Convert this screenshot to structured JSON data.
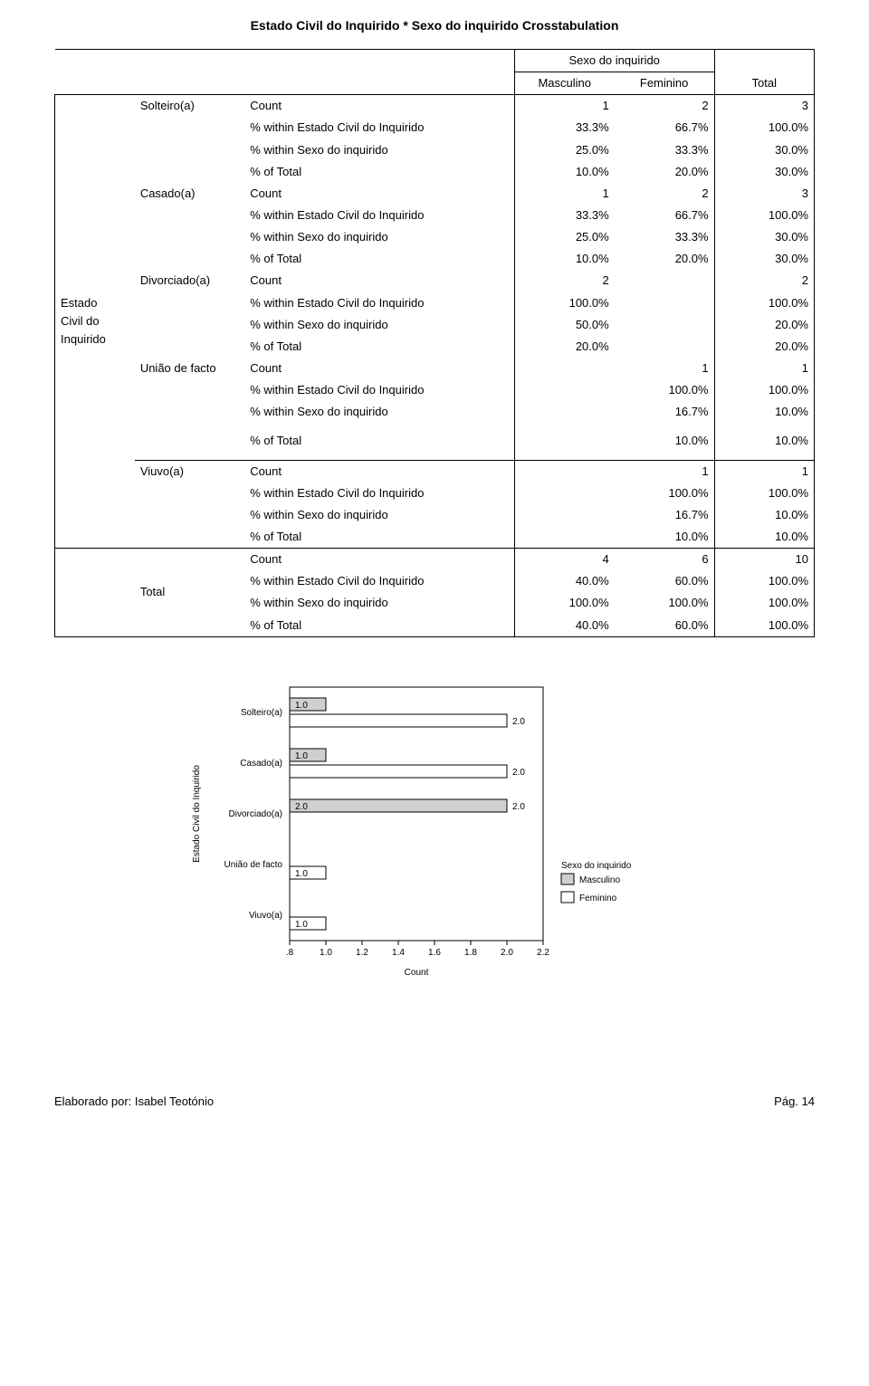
{
  "title": "Estado Civil do Inquirido *  Sexo do inquirido Crosstabulation",
  "header": {
    "spanner": "Sexo do inquirido",
    "col_masc": "Masculino",
    "col_fem": "Feminino",
    "col_total": "Total"
  },
  "stub_section": "Estado\nCivil do\nInquirido",
  "stats_labels": {
    "count": "Count",
    "w_estado": "% within Estado Civil do Inquirido",
    "w_sexo": "% within Sexo do inquirido",
    "pct_total": "% of Total"
  },
  "rows": [
    {
      "label": "Solteiro(a)",
      "count": {
        "m": "1",
        "f": "2",
        "t": "3"
      },
      "w_estado": {
        "m": "33.3%",
        "f": "66.7%",
        "t": "100.0%"
      },
      "w_sexo": {
        "m": "25.0%",
        "f": "33.3%",
        "t": "30.0%"
      },
      "pct_total": {
        "m": "10.0%",
        "f": "20.0%",
        "t": "30.0%"
      }
    },
    {
      "label": "Casado(a)",
      "count": {
        "m": "1",
        "f": "2",
        "t": "3"
      },
      "w_estado": {
        "m": "33.3%",
        "f": "66.7%",
        "t": "100.0%"
      },
      "w_sexo": {
        "m": "25.0%",
        "f": "33.3%",
        "t": "30.0%"
      },
      "pct_total": {
        "m": "10.0%",
        "f": "20.0%",
        "t": "30.0%"
      }
    },
    {
      "label": "Divorciado(a)",
      "count": {
        "m": "2",
        "f": "",
        "t": "2"
      },
      "w_estado": {
        "m": "100.0%",
        "f": "",
        "t": "100.0%"
      },
      "w_sexo": {
        "m": "50.0%",
        "f": "",
        "t": "20.0%"
      },
      "pct_total": {
        "m": "20.0%",
        "f": "",
        "t": "20.0%"
      }
    },
    {
      "label": "União de facto",
      "count": {
        "m": "",
        "f": "1",
        "t": "1"
      },
      "w_estado": {
        "m": "",
        "f": "100.0%",
        "t": "100.0%"
      },
      "w_sexo": {
        "m": "",
        "f": "16.7%",
        "t": "10.0%"
      },
      "pct_total": {
        "m": "",
        "f": "10.0%",
        "t": "10.0%"
      }
    },
    {
      "label": "Viuvo(a)",
      "count": {
        "m": "",
        "f": "1",
        "t": "1"
      },
      "w_estado": {
        "m": "",
        "f": "100.0%",
        "t": "100.0%"
      },
      "w_sexo": {
        "m": "",
        "f": "16.7%",
        "t": "10.0%"
      },
      "pct_total": {
        "m": "",
        "f": "10.0%",
        "t": "10.0%"
      }
    }
  ],
  "total_row": {
    "label": "Total",
    "count": {
      "m": "4",
      "f": "6",
      "t": "10"
    },
    "w_estado": {
      "m": "40.0%",
      "f": "60.0%",
      "t": "100.0%"
    },
    "w_sexo": {
      "m": "100.0%",
      "f": "100.0%",
      "t": "100.0%"
    },
    "pct_total": {
      "m": "40.0%",
      "f": "60.0%",
      "t": "100.0%"
    }
  },
  "chart": {
    "type": "grouped_horizontal_bar",
    "y_label": "Estado Civil do Inquirido",
    "x_label": "Count",
    "legend_title": "Sexo do inquirido",
    "legend_items": [
      "Masculino",
      "Feminino"
    ],
    "color_masc": "#d0d0d0",
    "color_fem": "#ffffff",
    "bar_stroke": "#000000",
    "background": "#ffffff",
    "xlim": [
      0.8,
      2.2
    ],
    "xticks": [
      ".8",
      "1.0",
      "1.2",
      "1.4",
      "1.6",
      "1.8",
      "2.0",
      "2.2"
    ],
    "categories": [
      "Solteiro(a)",
      "Casado(a)",
      "Divorciado(a)",
      "União de facto",
      "Viuvo(a)"
    ],
    "series": [
      {
        "cat": "Solteiro(a)",
        "masc": 1.0,
        "fem": 2.0,
        "masc_lbl": "1.0",
        "fem_lbl": "2.0"
      },
      {
        "cat": "Casado(a)",
        "masc": 1.0,
        "fem": 2.0,
        "masc_lbl": "1.0",
        "fem_lbl": "2.0"
      },
      {
        "cat": "Divorciado(a)",
        "masc": 2.0,
        "fem": null,
        "masc_lbl": "2.0",
        "fem_lbl": ""
      },
      {
        "cat": "União de facto",
        "masc": null,
        "fem": 1.0,
        "masc_lbl": "",
        "fem_lbl": "1.0"
      },
      {
        "cat": "Viuvo(a)",
        "masc": null,
        "fem": 1.0,
        "masc_lbl": "",
        "fem_lbl": "1.0"
      }
    ]
  },
  "footer": {
    "left": "Elaborado por: Isabel Teotónio",
    "right": "Pág. 14"
  }
}
